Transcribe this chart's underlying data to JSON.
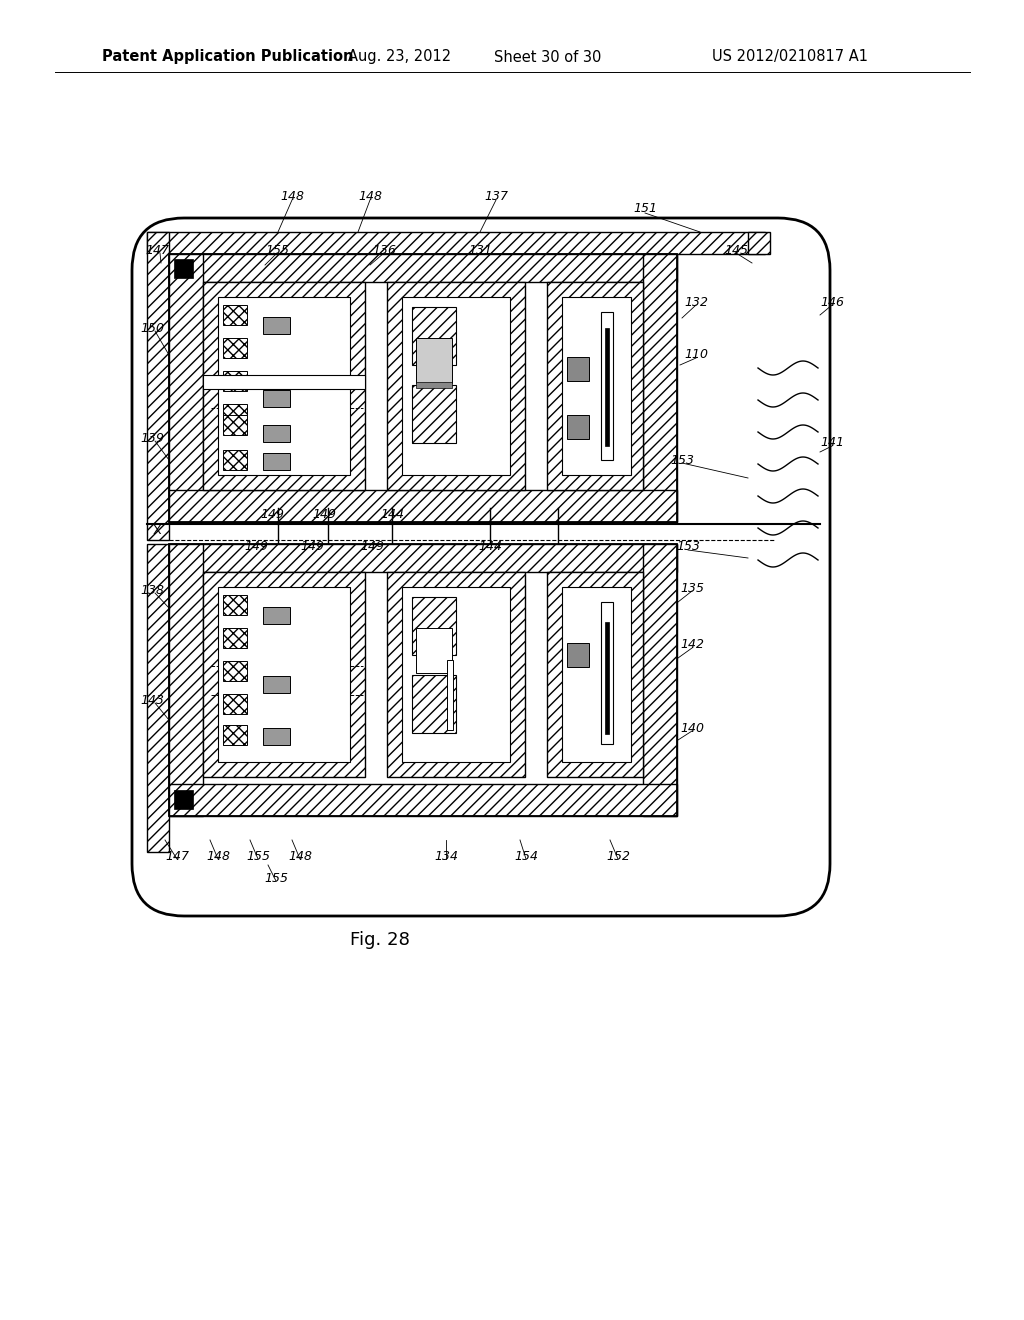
{
  "bg_color": "#ffffff",
  "header_text": "Patent Application Publication",
  "header_date": "Aug. 23, 2012",
  "header_sheet": "Sheet 30 of 30",
  "header_patent": "US 2012/0210817 A1",
  "figure_label": "Fig. 28",
  "title_fontsize": 10.5,
  "label_fontsize": 9
}
